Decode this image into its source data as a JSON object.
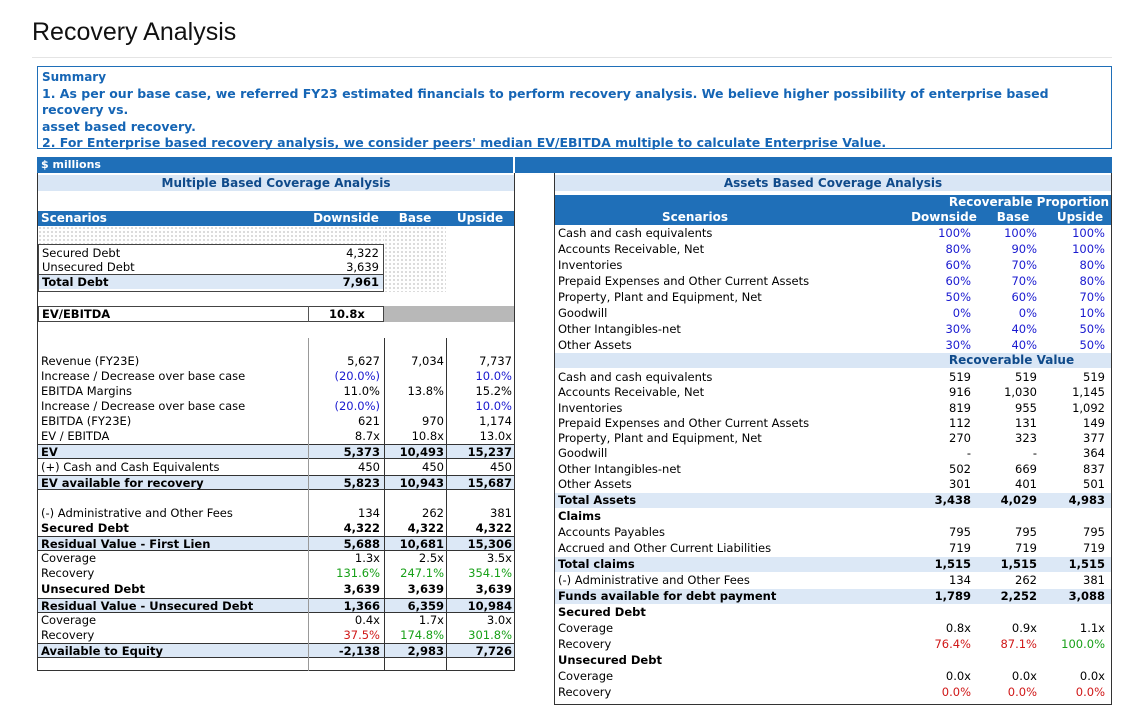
{
  "page": {
    "title": "Recovery Analysis"
  },
  "summary": {
    "title": "Summary",
    "line1": "1. As per our base case, we referred FY23 estimated financials to perform recovery analysis. We believe higher possibility of enterprise based recovery vs.",
    "line1b": "asset based recovery.",
    "line2": "2. For Enterprise based recovery analysis, we consider peers' median EV/EBITDA multiple to calculate Enterprise Value."
  },
  "units_label": "$ millions",
  "left": {
    "section_title": "Multiple Based Coverage Analysis",
    "headers": {
      "scenarios": "Scenarios",
      "downside": "Downside",
      "base": "Base",
      "upside": "Upside"
    },
    "debt_rows": [
      {
        "label": "Secured Debt",
        "value": "4,322"
      },
      {
        "label": "Unsecured Debt",
        "value": "3,639"
      },
      {
        "label": "Total Debt",
        "value": "7,961"
      }
    ],
    "ev_ebitda": {
      "label": "EV/EBITDA",
      "value": "10.8x"
    },
    "rows": [
      {
        "label": "Revenue (FY23E)",
        "d": "5,627",
        "b": "7,034",
        "u": "7,737",
        "style": ""
      },
      {
        "label": "Increase / Decrease over base case",
        "d": "(20.0%)",
        "b": "",
        "u": "10.0%",
        "style": "blue"
      },
      {
        "label": "EBITDA Margins",
        "d": "11.0%",
        "b": "13.8%",
        "u": "15.2%",
        "style": ""
      },
      {
        "label": "Increase / Decrease over base case",
        "d": "(20.0%)",
        "b": "",
        "u": "10.0%",
        "style": "blue"
      },
      {
        "label": "EBITDA (FY23E)",
        "d": "621",
        "b": "970",
        "u": "1,174",
        "style": ""
      },
      {
        "label": "EV / EBITDA",
        "d": "8.7x",
        "b": "10.8x",
        "u": "13.0x",
        "style": ""
      },
      {
        "label": "EV",
        "d": "5,373",
        "b": "10,493",
        "u": "15,237",
        "style": "bold-hl"
      },
      {
        "label": "(+) Cash and Cash Equivalents",
        "d": "450",
        "b": "450",
        "u": "450",
        "style": ""
      },
      {
        "label": "EV available for recovery",
        "d": "5,823",
        "b": "10,943",
        "u": "15,687",
        "style": "bold-hl"
      },
      {
        "label": "",
        "d": "",
        "b": "",
        "u": "",
        "style": "blank"
      },
      {
        "label": "(-) Administrative and Other Fees",
        "d": "134",
        "b": "262",
        "u": "381",
        "style": ""
      },
      {
        "label": "Secured Debt",
        "d": "4,322",
        "b": "4,322",
        "u": "4,322",
        "style": "bold"
      },
      {
        "label": "Residual Value - First Lien",
        "d": "5,688",
        "b": "10,681",
        "u": "15,306",
        "style": "bold-hl"
      },
      {
        "label": "Coverage",
        "d": "1.3x",
        "b": "2.5x",
        "u": "3.5x",
        "style": ""
      },
      {
        "label": "Recovery",
        "d": "131.6%",
        "b": "247.1%",
        "u": "354.1%",
        "style": "green"
      },
      {
        "label": "Unsecured Debt",
        "d": "3,639",
        "b": "3,639",
        "u": "3,639",
        "style": "bold"
      },
      {
        "label": "Residual Value - Unsecured Debt",
        "d": "1,366",
        "b": "6,359",
        "u": "10,984",
        "style": "bold-hl"
      },
      {
        "label": "Coverage",
        "d": "0.4x",
        "b": "1.7x",
        "u": "3.0x",
        "style": ""
      },
      {
        "label": "Recovery",
        "d": "37.5%",
        "b": "174.8%",
        "u": "301.8%",
        "style": "recov2"
      },
      {
        "label": "Available to Equity",
        "d": "-2,138",
        "b": "2,983",
        "u": "7,726",
        "style": "bold-hl"
      }
    ]
  },
  "right": {
    "section_title": "Assets Based Coverage Analysis",
    "sub_title_1": "Recoverable Proportion",
    "headers": {
      "scenarios": "Scenarios",
      "downside": "Downside",
      "base": "Base",
      "upside": "Upside"
    },
    "proportion_rows": [
      {
        "label": "Cash and cash equivalents",
        "d": "100%",
        "b": "100%",
        "u": "100%"
      },
      {
        "label": "Accounts Receivable, Net",
        "d": "80%",
        "b": "90%",
        "u": "100%"
      },
      {
        "label": "Inventories",
        "d": "60%",
        "b": "70%",
        "u": "80%"
      },
      {
        "label": "Prepaid Expenses and Other Current Assets",
        "d": "60%",
        "b": "70%",
        "u": "80%"
      },
      {
        "label": "Property, Plant and Equipment, Net",
        "d": "50%",
        "b": "60%",
        "u": "70%"
      },
      {
        "label": "Goodwill",
        "d": "0%",
        "b": "0%",
        "u": "10%"
      },
      {
        "label": "Other Intangibles-net",
        "d": "30%",
        "b": "40%",
        "u": "50%"
      },
      {
        "label": "Other Assets",
        "d": "30%",
        "b": "40%",
        "u": "50%"
      }
    ],
    "sub_title_2": "Recoverable Value",
    "value_rows": [
      {
        "label": "Cash and cash equivalents",
        "d": "519",
        "b": "519",
        "u": "519",
        "style": ""
      },
      {
        "label": "Accounts Receivable, Net",
        "d": "916",
        "b": "1,030",
        "u": "1,145",
        "style": ""
      },
      {
        "label": "Inventories",
        "d": "819",
        "b": "955",
        "u": "1,092",
        "style": ""
      },
      {
        "label": "Prepaid Expenses and Other Current Assets",
        "d": "112",
        "b": "131",
        "u": "149",
        "style": ""
      },
      {
        "label": "Property, Plant and Equipment, Net",
        "d": "270",
        "b": "323",
        "u": "377",
        "style": ""
      },
      {
        "label": "Goodwill",
        "d": "-",
        "b": "-",
        "u": "364",
        "style": ""
      },
      {
        "label": "Other Intangibles-net",
        "d": "502",
        "b": "669",
        "u": "837",
        "style": ""
      },
      {
        "label": "Other Assets",
        "d": "301",
        "b": "401",
        "u": "501",
        "style": ""
      },
      {
        "label": "Total Assets",
        "d": "3,438",
        "b": "4,029",
        "u": "4,983",
        "style": "bold-hl"
      },
      {
        "label": "Claims",
        "d": "",
        "b": "",
        "u": "",
        "style": "bold"
      },
      {
        "label": "Accounts Payables",
        "d": "795",
        "b": "795",
        "u": "795",
        "style": ""
      },
      {
        "label": "Accrued and Other Current Liabilities",
        "d": "719",
        "b": "719",
        "u": "719",
        "style": ""
      },
      {
        "label": "Total claims",
        "d": "1,515",
        "b": "1,515",
        "u": "1,515",
        "style": "bold-hl"
      },
      {
        "label": "(-) Administrative and Other Fees",
        "d": "134",
        "b": "262",
        "u": "381",
        "style": ""
      },
      {
        "label": "Funds available for debt payment",
        "d": "1,789",
        "b": "2,252",
        "u": "3,088",
        "style": "bold-hl"
      },
      {
        "label": "Secured Debt",
        "d": "",
        "b": "",
        "u": "",
        "style": "bold"
      },
      {
        "label": "Coverage",
        "d": "0.8x",
        "b": "0.9x",
        "u": "1.1x",
        "style": ""
      },
      {
        "label": "Recovery",
        "d": "76.4%",
        "b": "87.1%",
        "u": "100.0%",
        "style": "recovA"
      },
      {
        "label": "Unsecured Debt",
        "d": "",
        "b": "",
        "u": "",
        "style": "bold"
      },
      {
        "label": "Coverage",
        "d": "0.0x",
        "b": "0.0x",
        "u": "0.0x",
        "style": ""
      },
      {
        "label": "Recovery",
        "d": "0.0%",
        "b": "0.0%",
        "u": "0.0%",
        "style": "red"
      }
    ]
  }
}
